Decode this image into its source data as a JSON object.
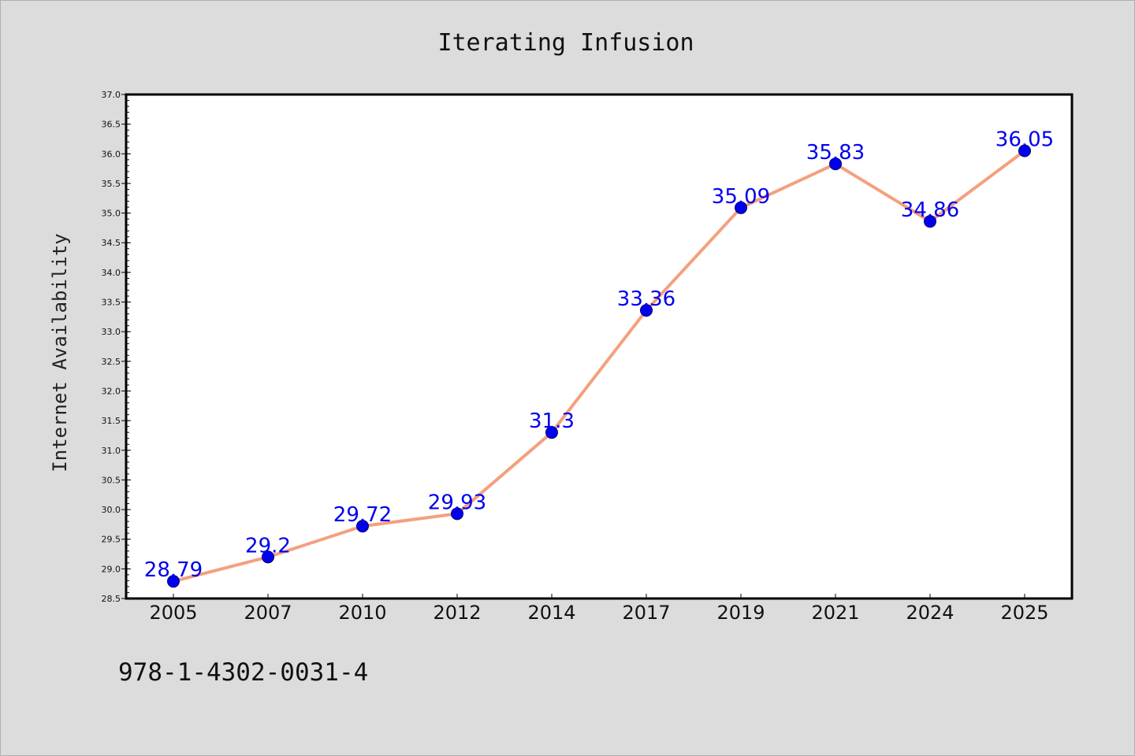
{
  "colors": {
    "background": "#dcdcdc",
    "plot_background": "#ffffff",
    "line": "#f4a07e",
    "marker_fill": "#0000ee",
    "marker_stroke": "#000066",
    "data_label": "#0000ee"
  },
  "footer": {
    "code": "978-1-4302-0031-4"
  },
  "chart_data": {
    "type": "line",
    "title": "Iterating Infusion",
    "xlabel": "",
    "ylabel": "Internet Availability",
    "categories": [
      "2005",
      "2007",
      "2010",
      "2012",
      "2014",
      "2017",
      "2019",
      "2021",
      "2024",
      "2025"
    ],
    "series": [
      {
        "values": [
          28.79,
          29.2,
          29.72,
          29.93,
          31.3,
          33.36,
          35.09,
          35.83,
          34.86,
          36.05
        ],
        "labels": [
          "28.79",
          "29.2",
          "29.72",
          "29.93",
          "31.3",
          "33.36",
          "35.09",
          "35.83",
          "34.86",
          "36.05"
        ]
      }
    ],
    "ylim": [
      28.5,
      37.0
    ],
    "yticks": [
      "28.5",
      "29.0",
      "29.5",
      "30.0",
      "30.5",
      "31.0",
      "31.5",
      "32.0",
      "32.5",
      "33.0",
      "33.5",
      "34.0",
      "34.5",
      "35.0",
      "35.5",
      "36.0",
      "36.5",
      "37.0"
    ],
    "grid": false,
    "legend": "none",
    "marker": "circle"
  }
}
